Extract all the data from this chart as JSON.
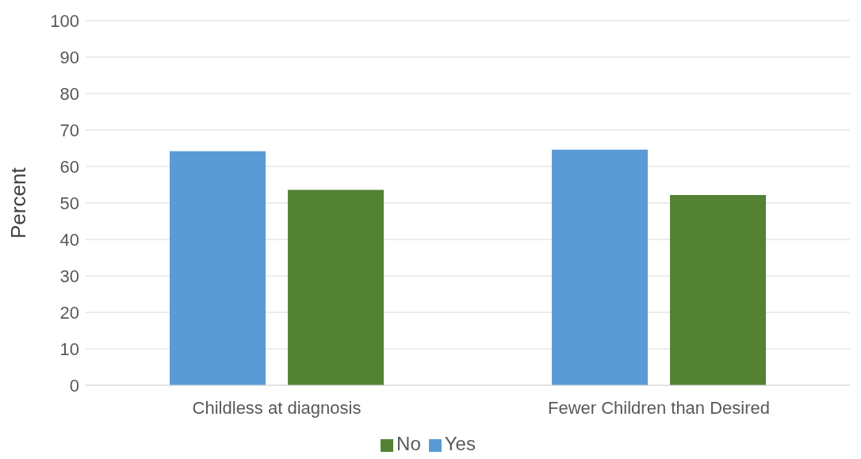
{
  "chart_data": {
    "type": "bar",
    "ylabel": "Percent",
    "categories": [
      "Childless at diagnosis",
      "Fewer Children than Desired"
    ],
    "series": [
      {
        "name": "Yes",
        "color": "#5b9bd5",
        "values": [
          64.2,
          64.6
        ]
      },
      {
        "name": "No",
        "color": "#548235",
        "values": [
          53.6,
          52.2
        ]
      }
    ],
    "ylim": [
      0,
      100
    ],
    "yticks": [
      0,
      10,
      20,
      30,
      40,
      50,
      60,
      70,
      80,
      90,
      100
    ],
    "grid": "y",
    "legend": "bottom"
  }
}
